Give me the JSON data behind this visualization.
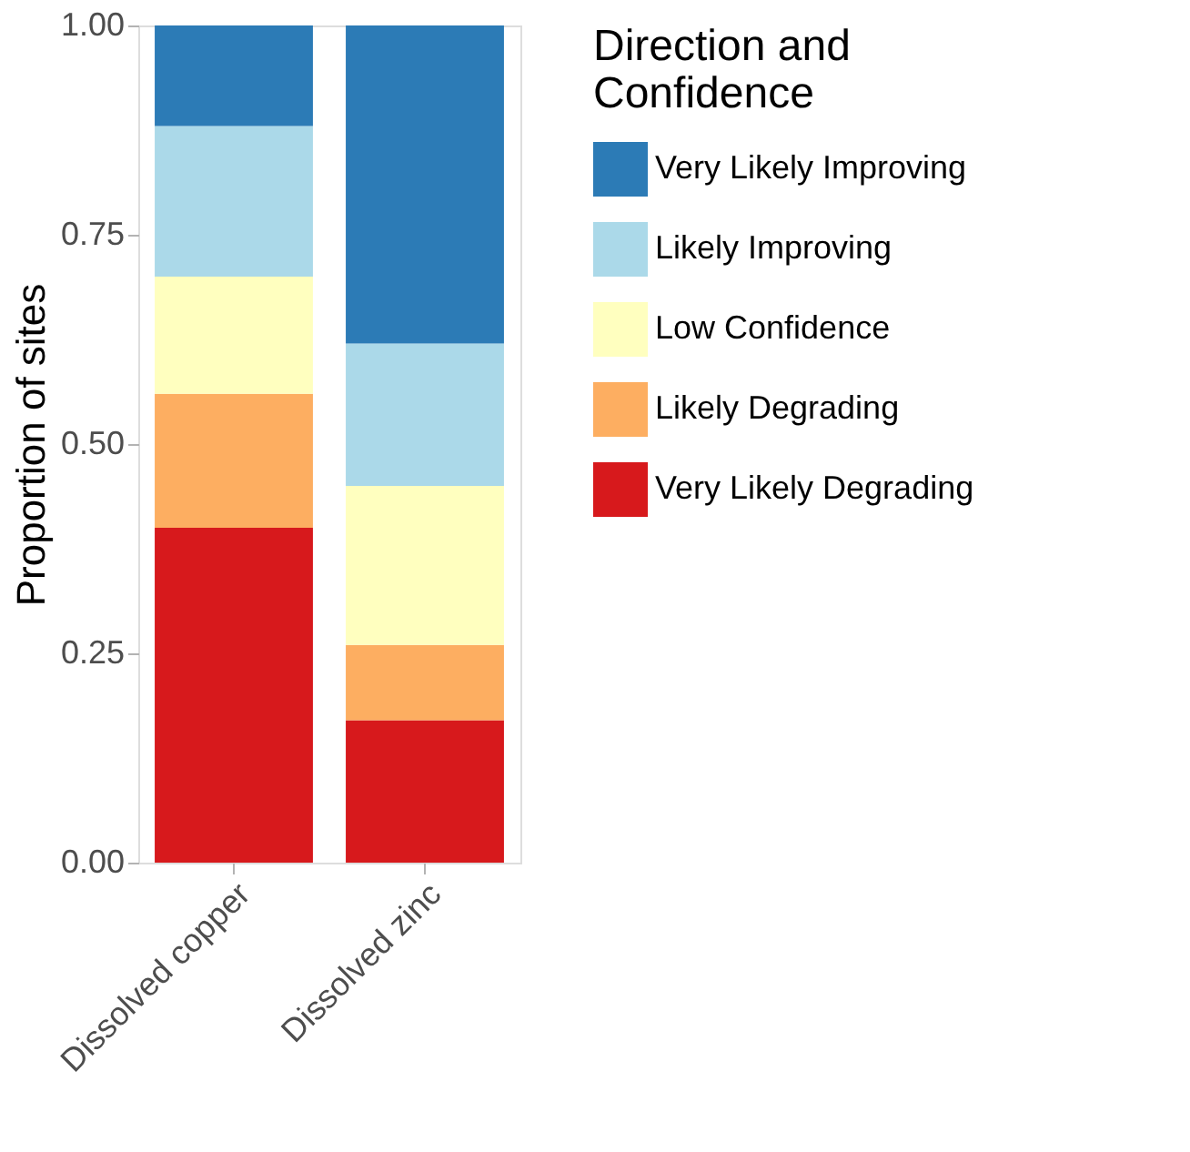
{
  "chart_data": {
    "type": "bar",
    "stacked": true,
    "ylabel": "Proportion of sites",
    "legend_title": "Direction and Confidence",
    "legend": "right",
    "grid": false,
    "categories": [
      "Dissolved copper",
      "Dissolved zinc"
    ],
    "ylim": [
      0,
      1
    ],
    "yticks": [
      {
        "value": 0,
        "label": "0.00"
      },
      {
        "value": 0.25,
        "label": "0.25"
      },
      {
        "value": 0.5,
        "label": "0.50"
      },
      {
        "value": 0.75,
        "label": "0.75"
      },
      {
        "value": 1,
        "label": "1.00"
      }
    ],
    "series": [
      {
        "name": "Very Likely Degrading",
        "color": "#d7191c",
        "values": [
          0.4,
          0.17
        ]
      },
      {
        "name": "Likely Degrading",
        "color": "#fdae61",
        "values": [
          0.16,
          0.09
        ]
      },
      {
        "name": "Low Confidence",
        "color": "#ffffbf",
        "values": [
          0.14,
          0.19
        ]
      },
      {
        "name": "Likely Improving",
        "color": "#abd9e9",
        "values": [
          0.18,
          0.17
        ]
      },
      {
        "name": "Very Likely Improving",
        "color": "#2c7bb6",
        "values": [
          0.12,
          0.38
        ]
      }
    ]
  }
}
